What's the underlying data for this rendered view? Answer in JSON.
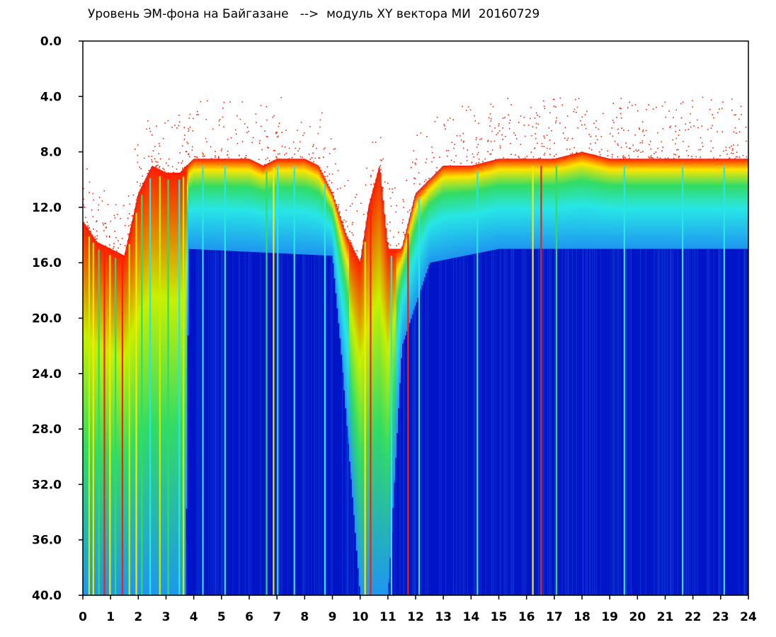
{
  "chart_data": {
    "type": "heatmap",
    "title": "Уровень ЭМ-фона на Байгазане   -->  модуль XY вектора МИ  20160729",
    "xlabel": "",
    "ylabel": "",
    "xlim": [
      0,
      24
    ],
    "ylim": [
      0,
      40
    ],
    "y_inverted": true,
    "grid": false,
    "x_ticks": [
      "0",
      "1",
      "2",
      "3",
      "4",
      "5",
      "6",
      "7",
      "8",
      "9",
      "10",
      "11",
      "12",
      "13",
      "14",
      "15",
      "16",
      "17",
      "18",
      "19",
      "20",
      "21",
      "22",
      "23",
      "24"
    ],
    "y_ticks": [
      "0.0",
      "4.0",
      "8.0",
      "12.0",
      "16.0",
      "20.0",
      "24.0",
      "28.0",
      "32.0",
      "36.0",
      "40.0"
    ],
    "colormap": [
      "#0014c8",
      "#0a46dc",
      "#1e96f0",
      "#28e6e6",
      "#32dc64",
      "#c8f000",
      "#ffe600",
      "#ff1e00"
    ],
    "background_color": "#0014c8",
    "upper_boundary_by_hour": [
      {
        "x": 0.0,
        "y": 13.0
      },
      {
        "x": 0.5,
        "y": 14.5
      },
      {
        "x": 1.0,
        "y": 15.0
      },
      {
        "x": 1.5,
        "y": 15.5
      },
      {
        "x": 2.0,
        "y": 11.0
      },
      {
        "x": 2.5,
        "y": 9.0
      },
      {
        "x": 3.0,
        "y": 9.5
      },
      {
        "x": 3.5,
        "y": 9.5
      },
      {
        "x": 4.0,
        "y": 8.5
      },
      {
        "x": 5.0,
        "y": 8.5
      },
      {
        "x": 6.0,
        "y": 8.5
      },
      {
        "x": 6.5,
        "y": 9.0
      },
      {
        "x": 7.0,
        "y": 8.5
      },
      {
        "x": 8.0,
        "y": 8.5
      },
      {
        "x": 8.5,
        "y": 9.0
      },
      {
        "x": 9.0,
        "y": 11.0
      },
      {
        "x": 9.5,
        "y": 14.0
      },
      {
        "x": 10.0,
        "y": 16.0
      },
      {
        "x": 10.3,
        "y": 12.0
      },
      {
        "x": 10.7,
        "y": 9.0
      },
      {
        "x": 11.0,
        "y": 15.0
      },
      {
        "x": 11.5,
        "y": 15.0
      },
      {
        "x": 12.0,
        "y": 11.0
      },
      {
        "x": 12.5,
        "y": 10.0
      },
      {
        "x": 13.0,
        "y": 9.0
      },
      {
        "x": 14.0,
        "y": 9.0
      },
      {
        "x": 15.0,
        "y": 8.5
      },
      {
        "x": 16.0,
        "y": 8.5
      },
      {
        "x": 17.0,
        "y": 8.5
      },
      {
        "x": 18.0,
        "y": 8.0
      },
      {
        "x": 19.0,
        "y": 8.5
      },
      {
        "x": 20.0,
        "y": 8.5
      },
      {
        "x": 21.0,
        "y": 8.5
      },
      {
        "x": 22.0,
        "y": 8.5
      },
      {
        "x": 23.0,
        "y": 8.5
      },
      {
        "x": 24.0,
        "y": 8.5
      }
    ],
    "intense_band_end_by_hour": [
      {
        "x": 0.0,
        "y": 40.0
      },
      {
        "x": 3.7,
        "y": 40.0
      },
      {
        "x": 3.8,
        "y": 15.0
      },
      {
        "x": 9.0,
        "y": 15.5
      },
      {
        "x": 9.3,
        "y": 22.0
      },
      {
        "x": 10.0,
        "y": 40.0
      },
      {
        "x": 11.0,
        "y": 40.0
      },
      {
        "x": 11.5,
        "y": 22.0
      },
      {
        "x": 12.5,
        "y": 16.0
      },
      {
        "x": 15.0,
        "y": 15.0
      },
      {
        "x": 24.0,
        "y": 15.0
      }
    ],
    "vertical_streaks": [
      {
        "x": 0.2,
        "color": "#c8f000"
      },
      {
        "x": 0.35,
        "color": "#ffe600"
      },
      {
        "x": 0.55,
        "color": "#32dc64"
      },
      {
        "x": 0.75,
        "color": "#ff1e00"
      },
      {
        "x": 0.95,
        "color": "#ffe600"
      },
      {
        "x": 1.15,
        "color": "#32dc64"
      },
      {
        "x": 1.4,
        "color": "#ff1e00"
      },
      {
        "x": 1.65,
        "color": "#c8f000"
      },
      {
        "x": 1.9,
        "color": "#ffe600"
      },
      {
        "x": 2.1,
        "color": "#32dc64"
      },
      {
        "x": 2.4,
        "color": "#28e6e6"
      },
      {
        "x": 2.75,
        "color": "#c8f000"
      },
      {
        "x": 3.05,
        "color": "#32dc64"
      },
      {
        "x": 3.45,
        "color": "#28e6e6"
      },
      {
        "x": 3.6,
        "color": "#c8f000"
      },
      {
        "x": 4.3,
        "color": "#28e6e6"
      },
      {
        "x": 5.1,
        "color": "#28e6e6"
      },
      {
        "x": 6.6,
        "color": "#32dc64"
      },
      {
        "x": 6.85,
        "color": "#ffe600"
      },
      {
        "x": 7.0,
        "color": "#28e6e6"
      },
      {
        "x": 7.6,
        "color": "#28e6e6"
      },
      {
        "x": 8.7,
        "color": "#28e6e6"
      },
      {
        "x": 10.15,
        "color": "#ffe600"
      },
      {
        "x": 10.35,
        "color": "#ff1e00"
      },
      {
        "x": 11.1,
        "color": "#28e6e6"
      },
      {
        "x": 11.7,
        "color": "#ff1e00"
      },
      {
        "x": 12.1,
        "color": "#28e6e6"
      },
      {
        "x": 14.2,
        "color": "#28e6e6"
      },
      {
        "x": 16.2,
        "color": "#ffe600"
      },
      {
        "x": 16.5,
        "color": "#ff1e00"
      },
      {
        "x": 17.05,
        "color": "#32dc64"
      },
      {
        "x": 19.5,
        "color": "#28e6e6"
      },
      {
        "x": 21.6,
        "color": "#28e6e6"
      },
      {
        "x": 23.1,
        "color": "#28e6e6"
      }
    ]
  }
}
